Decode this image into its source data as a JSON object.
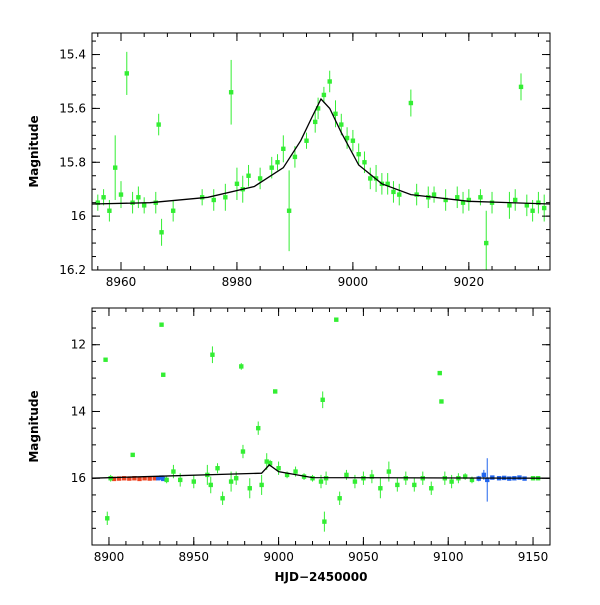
{
  "chart_data": [
    {
      "type": "scatter",
      "panel": "top",
      "title": "",
      "xlabel": "",
      "ylabel": "Magnitude",
      "xlim": [
        8955,
        9034
      ],
      "ylim": [
        16.2,
        15.32
      ],
      "y_inverted": true,
      "x_ticks": [
        8960,
        8980,
        9000,
        9020
      ],
      "x_tick_labels": [
        "8960",
        "8980",
        "9000",
        "9020"
      ],
      "y_ticks": [
        15.4,
        15.6,
        15.8,
        16.0,
        16.2
      ],
      "y_tick_labels": [
        "15.4",
        "15.6",
        "15.8",
        "16",
        "16.2"
      ],
      "colors": {
        "data": "#33ee33",
        "model": "#000000"
      },
      "series": [
        {
          "kind": "points",
          "color": "#33ee33",
          "points": [
            [
              8956,
              15.95,
              0.03
            ],
            [
              8957,
              15.93,
              0.03
            ],
            [
              8958,
              15.98,
              0.04
            ],
            [
              8959,
              15.82,
              0.12
            ],
            [
              8960,
              15.92,
              0.05
            ],
            [
              8961,
              15.47,
              0.08
            ],
            [
              8962,
              15.95,
              0.04
            ],
            [
              8963,
              15.93,
              0.04
            ],
            [
              8964,
              15.96,
              0.03
            ],
            [
              8966,
              15.95,
              0.04
            ],
            [
              8966.5,
              15.66,
              0.04
            ],
            [
              8967,
              16.06,
              0.05
            ],
            [
              8969,
              15.98,
              0.04
            ],
            [
              8974,
              15.93,
              0.03
            ],
            [
              8976,
              15.94,
              0.04
            ],
            [
              8978,
              15.93,
              0.05
            ],
            [
              8979,
              15.54,
              0.12
            ],
            [
              8980,
              15.88,
              0.06
            ],
            [
              8981,
              15.9,
              0.05
            ],
            [
              8982,
              15.85,
              0.04
            ],
            [
              8984,
              15.86,
              0.04
            ],
            [
              8986,
              15.82,
              0.04
            ],
            [
              8987,
              15.8,
              0.03
            ],
            [
              8988,
              15.75,
              0.05
            ],
            [
              8989,
              15.98,
              0.15
            ],
            [
              8990,
              15.78,
              0.04
            ],
            [
              8992,
              15.72,
              0.03
            ],
            [
              8993.5,
              15.65,
              0.04
            ],
            [
              8994,
              15.6,
              0.04
            ],
            [
              8995,
              15.55,
              0.03
            ],
            [
              8996,
              15.5,
              0.04
            ],
            [
              8997,
              15.62,
              0.05
            ],
            [
              8998,
              15.66,
              0.04
            ],
            [
              8999,
              15.71,
              0.04
            ],
            [
              9000,
              15.72,
              0.04
            ],
            [
              9001,
              15.77,
              0.04
            ],
            [
              9002,
              15.8,
              0.04
            ],
            [
              9003,
              15.86,
              0.04
            ],
            [
              9004,
              15.86,
              0.05
            ],
            [
              9005,
              15.88,
              0.04
            ],
            [
              9006,
              15.88,
              0.04
            ],
            [
              9007,
              15.91,
              0.04
            ],
            [
              9008,
              15.92,
              0.04
            ],
            [
              9010,
              15.58,
              0.05
            ],
            [
              9011,
              15.92,
              0.04
            ],
            [
              9013,
              15.93,
              0.04
            ],
            [
              9014,
              15.92,
              0.03
            ],
            [
              9016,
              15.94,
              0.04
            ],
            [
              9018,
              15.93,
              0.04
            ],
            [
              9019,
              15.95,
              0.04
            ],
            [
              9020,
              15.94,
              0.04
            ],
            [
              9022,
              15.93,
              0.03
            ],
            [
              9023,
              16.1,
              0.12
            ],
            [
              9024,
              15.95,
              0.04
            ],
            [
              9027,
              15.96,
              0.05
            ],
            [
              9028,
              15.94,
              0.04
            ],
            [
              9029,
              15.52,
              0.05
            ],
            [
              9030,
              15.96,
              0.04
            ],
            [
              9031,
              15.98,
              0.04
            ],
            [
              9032,
              15.95,
              0.04
            ],
            [
              9033,
              15.97,
              0.05
            ]
          ]
        },
        {
          "kind": "line",
          "color": "#000000",
          "x": [
            8955,
            8965,
            8975,
            8983,
            8988,
            8991,
            8993,
            8994.5,
            8996,
            8998,
            9001,
            9005,
            9010,
            9020,
            9034
          ],
          "y": [
            15.955,
            15.95,
            15.93,
            15.89,
            15.82,
            15.72,
            15.63,
            15.565,
            15.6,
            15.69,
            15.81,
            15.88,
            15.92,
            15.945,
            15.955
          ]
        }
      ]
    },
    {
      "type": "scatter",
      "panel": "bottom",
      "title": "",
      "xlabel": "HJD−2450000",
      "ylabel": "Magnitude",
      "xlim": [
        8890,
        9160
      ],
      "ylim": [
        18.0,
        10.9
      ],
      "y_inverted": true,
      "x_ticks": [
        8900,
        8950,
        9000,
        9050,
        9100,
        9150
      ],
      "x_tick_labels": [
        "8900",
        "8950",
        "9000",
        "9050",
        "9100",
        "9150"
      ],
      "y_ticks": [
        12,
        14,
        16
      ],
      "y_tick_labels": [
        "12",
        "14",
        "16"
      ],
      "colors": {
        "green": "#33ee33",
        "red": "#ee4422",
        "blue": "#2266ee",
        "model": "#000000"
      },
      "series": [
        {
          "kind": "points",
          "color": "#ee4422",
          "points": [
            [
              8903,
              16.02,
              0.03
            ],
            [
              8906,
              16.01,
              0.03
            ],
            [
              8909,
              16.0,
              0.03
            ],
            [
              8912,
              16.01,
              0.03
            ],
            [
              8915,
              16.0,
              0.03
            ],
            [
              8918,
              16.02,
              0.03
            ],
            [
              8921,
              16.0,
              0.03
            ],
            [
              8924,
              16.01,
              0.03
            ],
            [
              8927,
              16.0,
              0.03
            ]
          ]
        },
        {
          "kind": "points",
          "color": "#2266ee",
          "points": [
            [
              8929,
              16.0,
              0.05
            ],
            [
              8931,
              15.98,
              0.05
            ],
            [
              8932,
              16.02,
              0.05
            ],
            [
              9118,
              16.01,
              0.08
            ],
            [
              9121,
              15.9,
              0.15
            ],
            [
              9123,
              16.05,
              0.65
            ],
            [
              9126,
              15.98,
              0.05
            ],
            [
              9130,
              16.0,
              0.04
            ],
            [
              9133,
              15.99,
              0.04
            ],
            [
              9136,
              16.01,
              0.04
            ],
            [
              9139,
              16.0,
              0.04
            ],
            [
              9142,
              15.98,
              0.04
            ],
            [
              9145,
              16.01,
              0.04
            ]
          ]
        },
        {
          "kind": "points",
          "color": "#33ee33",
          "points": [
            [
              8898,
              12.45,
              0.05
            ],
            [
              8899,
              17.2,
              0.2
            ],
            [
              8901,
              16.0,
              0.1
            ],
            [
              8914,
              15.3,
              0.05
            ],
            [
              8931,
              11.4,
              0.05
            ],
            [
              8932,
              12.9,
              0.05
            ],
            [
              8934,
              16.05,
              0.1
            ],
            [
              8938,
              15.8,
              0.2
            ],
            [
              8942,
              16.05,
              0.2
            ],
            [
              8950,
              16.1,
              0.2
            ],
            [
              8958,
              15.9,
              0.3
            ],
            [
              8960,
              16.2,
              0.25
            ],
            [
              8961,
              12.3,
              0.25
            ],
            [
              8964,
              15.7,
              0.15
            ],
            [
              8967,
              16.6,
              0.2
            ],
            [
              8972,
              16.1,
              0.3
            ],
            [
              8975,
              16.0,
              0.2
            ],
            [
              8978,
              12.65,
              0.1
            ],
            [
              8979,
              15.2,
              0.2
            ],
            [
              8983,
              16.3,
              0.3
            ],
            [
              8988,
              14.5,
              0.2
            ],
            [
              8990,
              16.2,
              0.3
            ],
            [
              8993,
              15.5,
              0.25
            ],
            [
              8995,
              15.55,
              0.1
            ],
            [
              8998,
              13.4,
              0.05
            ],
            [
              9000,
              15.7,
              0.2
            ],
            [
              9005,
              15.9,
              0.1
            ],
            [
              9010,
              15.8,
              0.15
            ],
            [
              9015,
              15.95,
              0.1
            ],
            [
              9020,
              16.0,
              0.1
            ],
            [
              9025,
              16.1,
              0.2
            ],
            [
              9026,
              13.65,
              0.25
            ],
            [
              9027,
              17.3,
              0.3
            ],
            [
              9028,
              16.0,
              0.2
            ],
            [
              9034,
              11.25,
              0.05
            ],
            [
              9036,
              16.6,
              0.2
            ],
            [
              9040,
              15.9,
              0.15
            ],
            [
              9045,
              16.1,
              0.2
            ],
            [
              9050,
              16.0,
              0.2
            ],
            [
              9055,
              15.95,
              0.2
            ],
            [
              9060,
              16.3,
              0.3
            ],
            [
              9065,
              15.8,
              0.3
            ],
            [
              9070,
              16.2,
              0.2
            ],
            [
              9075,
              16.0,
              0.2
            ],
            [
              9080,
              16.2,
              0.2
            ],
            [
              9085,
              16.0,
              0.2
            ],
            [
              9090,
              16.3,
              0.2
            ],
            [
              9095,
              12.85,
              0.05
            ],
            [
              9096,
              13.7,
              0.05
            ],
            [
              9098,
              16.0,
              0.2
            ],
            [
              9102,
              16.1,
              0.2
            ],
            [
              9106,
              16.0,
              0.15
            ],
            [
              9110,
              15.95,
              0.1
            ],
            [
              9114,
              16.05,
              0.1
            ],
            [
              9150,
              16.0,
              0.05
            ],
            [
              9153,
              16.0,
              0.05
            ]
          ]
        },
        {
          "kind": "line",
          "color": "#000000",
          "x": [
            8890,
            8990,
            8994.5,
            9000,
            9020,
            9160
          ],
          "y": [
            16.0,
            15.85,
            15.6,
            15.8,
            15.98,
            16.0
          ]
        }
      ]
    }
  ]
}
